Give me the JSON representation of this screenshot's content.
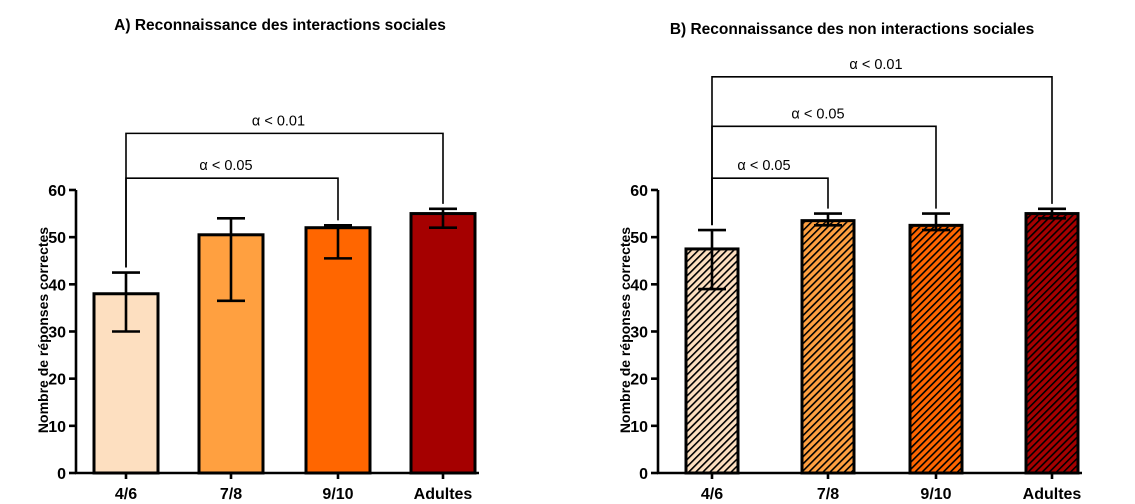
{
  "chart_data": [
    {
      "type": "bar",
      "title": "A) Reconnaissance des interactions sociales",
      "ylabel": "Nombre de réponses correctes",
      "xlabel": "",
      "ylim": [
        0,
        60
      ],
      "yticks": [
        "0",
        "10",
        "20",
        "30",
        "40",
        "50",
        "60"
      ],
      "categories": [
        "4/6",
        "7/8",
        "9/10",
        "Adultes"
      ],
      "values": [
        38,
        50.5,
        52,
        55
      ],
      "error_low": [
        30,
        36.5,
        45.5,
        52
      ],
      "error_high": [
        42.5,
        54,
        52.5,
        56
      ],
      "colors": [
        "#FDDFC0",
        "#FFA040",
        "#FF6600",
        "#A50000"
      ],
      "pattern": "solid",
      "significance": [
        {
          "from": "4/6",
          "to": "9/10",
          "label": "α < 0.05",
          "level": 62.5
        },
        {
          "from": "4/6",
          "to": "Adultes",
          "label": "α < 0.01",
          "level": 72
        }
      ]
    },
    {
      "type": "bar",
      "title": "B) Reconnaissance des non interactions sociales",
      "ylabel": "Nombre de réponses correctes",
      "xlabel": "",
      "ylim": [
        0,
        60
      ],
      "yticks": [
        "0",
        "10",
        "20",
        "30",
        "40",
        "50",
        "60"
      ],
      "categories": [
        "4/6",
        "7/8",
        "9/10",
        "Adultes"
      ],
      "values": [
        47.5,
        53.5,
        52.5,
        55
      ],
      "error_low": [
        39,
        52.5,
        51.5,
        54
      ],
      "error_high": [
        51.5,
        55,
        55,
        56
      ],
      "colors": [
        "#FDDFC0",
        "#FFA040",
        "#FF6600",
        "#A50000"
      ],
      "pattern": "hatched",
      "significance": [
        {
          "from": "4/6",
          "to": "7/8",
          "label": "α < 0.05",
          "level": 62.5
        },
        {
          "from": "4/6",
          "to": "9/10",
          "label": "α < 0.05",
          "level": 73.5
        },
        {
          "from": "4/6",
          "to": "Adultes",
          "label": "α < 0.01",
          "level": 84
        }
      ]
    }
  ]
}
